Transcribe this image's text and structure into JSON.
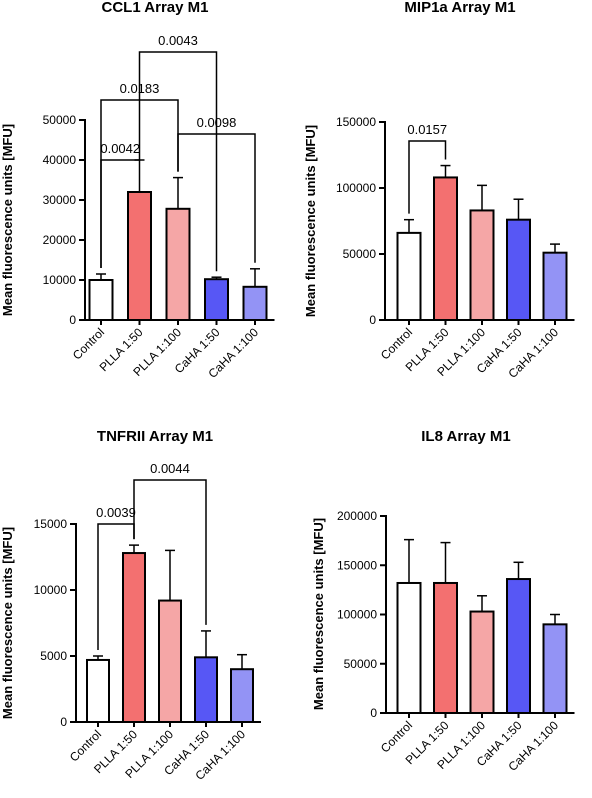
{
  "chart_data": [
    {
      "type": "bar",
      "title": "CCL1 Array M1",
      "ylabel": "Mean fluorescence units [MFU]",
      "categories": [
        "Control",
        "PLLA 1:50",
        "PLLA 1:100",
        "CaHA 1:50",
        "CaHA 1:100"
      ],
      "values": [
        10000,
        32000,
        27800,
        10200,
        8300
      ],
      "errors": [
        1500,
        8000,
        7800,
        500,
        4500
      ],
      "colors": [
        "#ffffff",
        "#f37070",
        "#f5a6a6",
        "#5757f5",
        "#9393f5"
      ],
      "ylim": [
        0,
        50000
      ],
      "yticks": [
        0,
        10000,
        20000,
        30000,
        40000,
        50000
      ],
      "comparisons": [
        {
          "from": 0,
          "to": 1,
          "p": "0.0042"
        },
        {
          "from": 0,
          "to": 2,
          "p": "0.0183"
        },
        {
          "from": 1,
          "to": 3,
          "p": "0.0043"
        },
        {
          "from": 2,
          "to": 4,
          "p": "0.0098"
        }
      ]
    },
    {
      "type": "bar",
      "title": "MIP1a Array M1",
      "ylabel": "Mean fluorescence units [MFU]",
      "categories": [
        "Control",
        "PLLA 1:50",
        "PLLA 1:100",
        "CaHA 1:50",
        "CaHA 1:100"
      ],
      "values": [
        66000,
        108000,
        83000,
        76000,
        51000
      ],
      "errors": [
        10000,
        9000,
        19000,
        15500,
        6500
      ],
      "colors": [
        "#ffffff",
        "#f37070",
        "#f5a6a6",
        "#5757f5",
        "#9393f5"
      ],
      "ylim": [
        0,
        150000
      ],
      "yticks": [
        0,
        50000,
        100000,
        150000
      ],
      "comparisons": [
        {
          "from": 0,
          "to": 1,
          "p": "0.0157"
        }
      ]
    },
    {
      "type": "bar",
      "title": "TNFRII Array M1",
      "ylabel": "Mean fluorescence units [MFU]",
      "categories": [
        "Control",
        "PLLA 1:50",
        "PLLA 1:100",
        "CaHA 1:50",
        "CaHA 1:100"
      ],
      "values": [
        4700,
        12800,
        9200,
        4900,
        4000
      ],
      "errors": [
        300,
        600,
        3800,
        2000,
        1100
      ],
      "colors": [
        "#ffffff",
        "#f37070",
        "#f5a6a6",
        "#5757f5",
        "#9393f5"
      ],
      "ylim": [
        0,
        15000
      ],
      "yticks": [
        0,
        5000,
        10000,
        15000
      ],
      "comparisons": [
        {
          "from": 0,
          "to": 1,
          "p": "0.0039"
        },
        {
          "from": 1,
          "to": 3,
          "p": "0.0044"
        }
      ]
    },
    {
      "type": "bar",
      "title": "IL8 Array M1",
      "ylabel": "Mean fluorescence units [MFU]",
      "categories": [
        "Control",
        "PLLA 1:50",
        "PLLA 1:100",
        "CaHA 1:50",
        "CaHA 1:100"
      ],
      "values": [
        132000,
        132000,
        103000,
        136000,
        90000
      ],
      "errors": [
        44000,
        41000,
        16000,
        17000,
        10000
      ],
      "colors": [
        "#ffffff",
        "#f37070",
        "#f5a6a6",
        "#5757f5",
        "#9393f5"
      ],
      "ylim": [
        0,
        200000
      ],
      "yticks": [
        0,
        50000,
        100000,
        150000,
        200000
      ],
      "comparisons": []
    }
  ]
}
